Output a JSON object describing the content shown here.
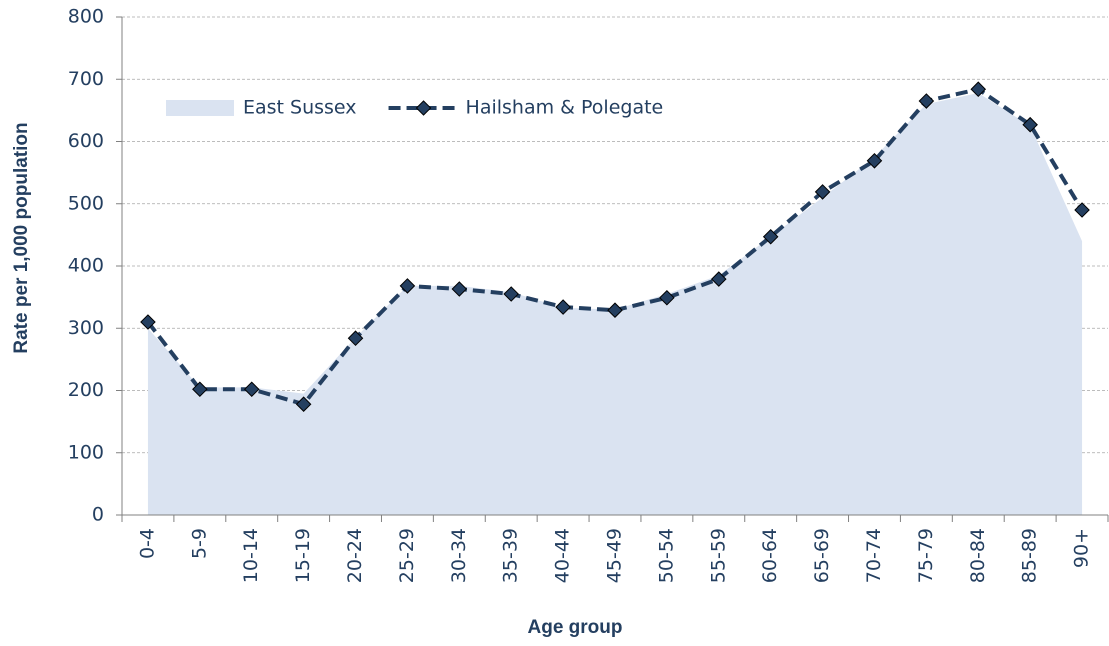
{
  "chart_data": {
    "type": "line",
    "x_label": "Age group",
    "y_label": "Rate per 1,000 population",
    "categories": [
      "0-4",
      "5-9",
      "10-14",
      "15-19",
      "20-24",
      "25-29",
      "30-34",
      "35-39",
      "40-44",
      "45-49",
      "50-54",
      "55-59",
      "60-64",
      "65-69",
      "70-74",
      "75-79",
      "80-84",
      "85-89",
      "90+"
    ],
    "series": [
      {
        "name": "East Sussex",
        "kind": "area",
        "color": "#dae3f1",
        "values": [
          300,
          205,
          205,
          195,
          285,
          368,
          368,
          358,
          333,
          330,
          355,
          385,
          447,
          510,
          575,
          660,
          678,
          625,
          440
        ]
      },
      {
        "name": "Hailsham & Polegate",
        "kind": "line",
        "color": "#243f60",
        "values": [
          310,
          202,
          202,
          178,
          284,
          368,
          363,
          355,
          334,
          329,
          349,
          379,
          447,
          519,
          569,
          665,
          684,
          627,
          490
        ]
      }
    ],
    "ylim": [
      0,
      800
    ],
    "yticks": [
      0,
      100,
      200,
      300,
      400,
      500,
      600,
      700,
      800
    ],
    "grid": true,
    "legend": "top-left"
  }
}
